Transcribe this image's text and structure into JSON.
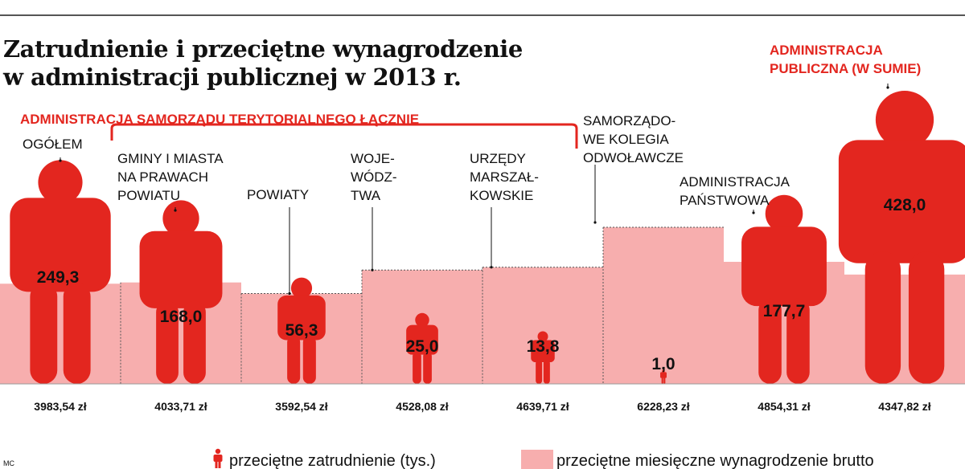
{
  "title_lines": [
    "Zatrudnienie i przeciętne wynagrodzenie",
    "w administracji publicznej w 2013 r."
  ],
  "group_label": "ADMINISTRACJA SAMORZĄDU TERYTORIALNEGO ŁĄCZNIE",
  "colors": {
    "figure": "#e3261f",
    "bar": "#f7aeae",
    "accent_text": "#e3261f",
    "text": "#111111"
  },
  "chart_data": {
    "type": "bar",
    "categories": [
      "OGÓŁEM",
      "GMINY I MIASTA NA PRAWACH POWIATU",
      "POWIATY",
      "WOJEWÓDZTWA",
      "URZĘDY MARSZAŁKOWSKIE",
      "SAMORZĄDOWE KOLEGIA ODWOŁAWCZE",
      "ADMINISTRACJA PAŃSTWOWA",
      "ADMINISTRACJA PUBLICZNA (W SUMIE)"
    ],
    "category_label_lines": [
      [
        "OGÓŁEM"
      ],
      [
        "GMINY I MIASTA",
        "NA PRAWACH",
        "POWIATU"
      ],
      [
        "POWIATY"
      ],
      [
        "WOJE-",
        "WÓDZ-",
        "TWA"
      ],
      [
        "URZĘDY",
        "MARSZAŁ-",
        "KOWSKIE"
      ],
      [
        "SAMORZĄDO-",
        "WE KOLEGIA",
        "ODWOŁAWCZE"
      ],
      [
        "ADMINISTRACJA",
        "PAŃSTWOWA"
      ],
      [
        "ADMINISTRACJA",
        "PUBLICZNA (W SUMIE)"
      ]
    ],
    "series": [
      {
        "name": "przeciętne zatrudnienie (tys.)",
        "values": [
          249.3,
          168.0,
          56.3,
          25.0,
          13.8,
          1.0,
          177.7,
          428.0
        ],
        "value_labels": [
          "249,3",
          "168,0",
          "56,3",
          "25,0",
          "13,8",
          "1,0",
          "177,7",
          "428,0"
        ]
      },
      {
        "name": "przeciętne miesięczne wynagrodzenie brutto",
        "values": [
          3983.54,
          4033.71,
          3592.54,
          4528.08,
          4639.71,
          6228.23,
          4854.31,
          4347.82
        ],
        "value_labels": [
          "3983,54 zł",
          "4033,71 zł",
          "3592,54 zł",
          "4528,08 zł",
          "4639,71 zł",
          "6228,23 zł",
          "4854,31 zł",
          "4347,82 zł"
        ]
      }
    ]
  },
  "legend": {
    "employment": "przeciętne zatrudnienie (tys.)",
    "salary": "przeciętne miesięczne wynagrodzenie brutto"
  },
  "credit": "MC"
}
